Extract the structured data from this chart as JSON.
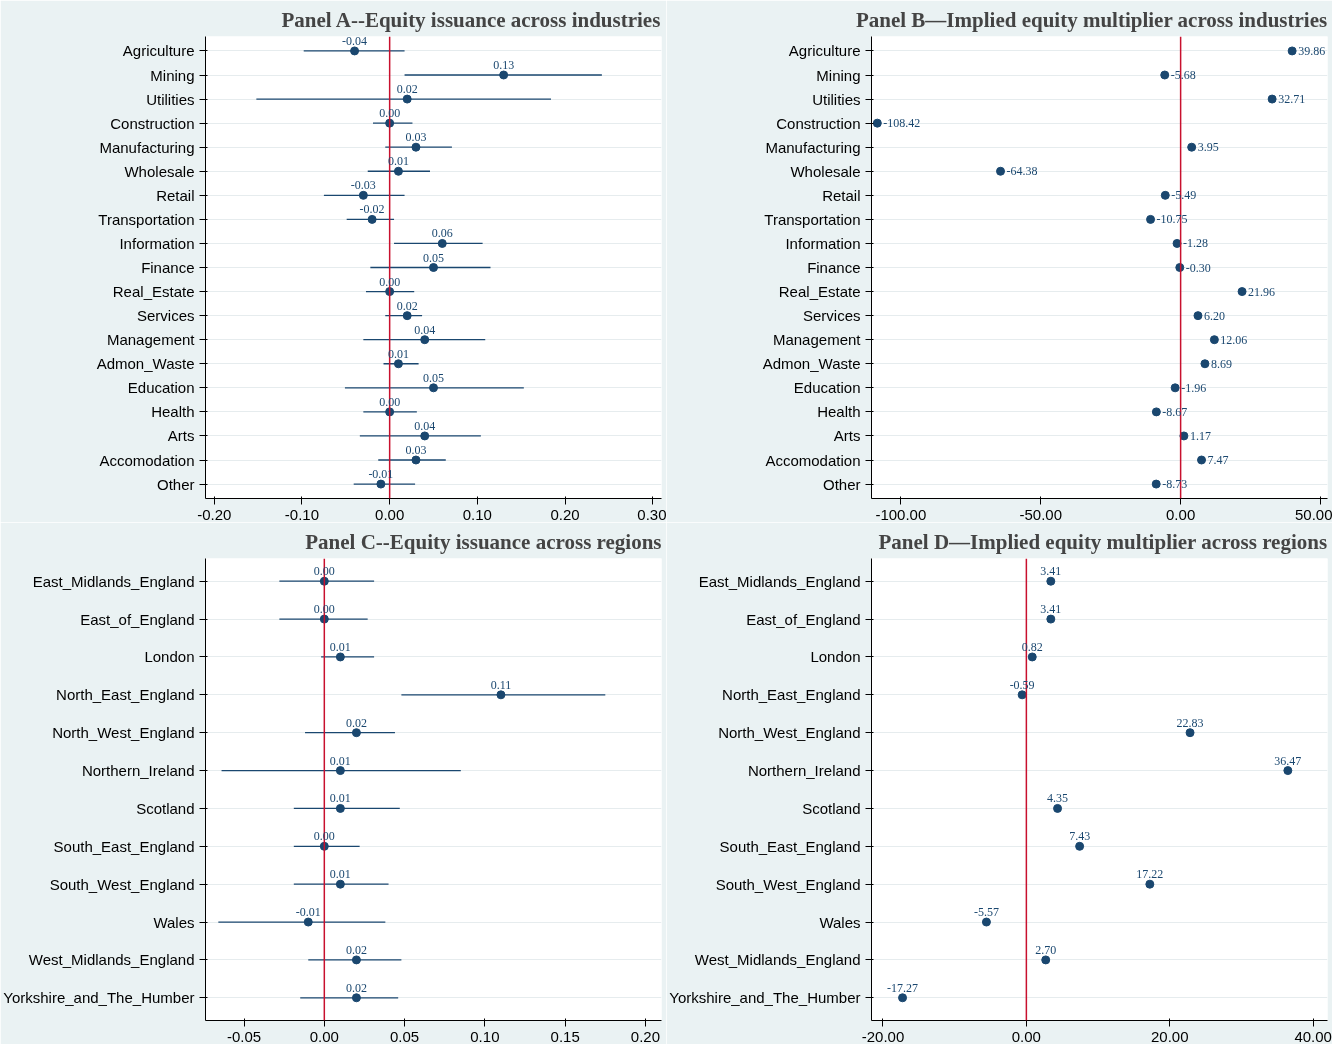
{
  "chart_data": [
    {
      "type": "scatter",
      "orientation": "horizontal",
      "title": "Panel A--Equity issuance across industries",
      "categories": [
        "Agriculture",
        "Mining",
        "Utilities",
        "Construction",
        "Manufacturing",
        "Wholesale",
        "Retail",
        "Transportation",
        "Information",
        "Finance",
        "Real_Estate",
        "Services",
        "Management",
        "Admon_Waste",
        "Education",
        "Health",
        "Arts",
        "Accomodation",
        "Other"
      ],
      "color": "#1a476f",
      "values": [
        -0.04,
        0.13,
        0.02,
        0.0,
        0.03,
        0.01,
        -0.03,
        -0.02,
        0.06,
        0.05,
        0.0,
        0.02,
        0.04,
        0.01,
        0.05,
        0.0,
        0.04,
        0.03,
        -0.01
      ],
      "value_labels": [
        "-0.04",
        "0.13",
        "0.02",
        "0.00",
        "0.03",
        "0.01",
        "-0.03",
        "-0.02",
        "0.06",
        "0.05",
        "0.00",
        "0.02",
        "0.04",
        "0.01",
        "0.05",
        "0.00",
        "0.04",
        "0.03",
        "-0.01"
      ],
      "errors": [
        [
          -0.098,
          0.017
        ],
        [
          0.017,
          0.242
        ],
        [
          -0.152,
          0.184
        ],
        [
          -0.019,
          0.026
        ],
        [
          -0.005,
          0.071
        ],
        [
          -0.025,
          0.046
        ],
        [
          -0.075,
          0.017
        ],
        [
          -0.049,
          0.005
        ],
        [
          0.005,
          0.106
        ],
        [
          -0.022,
          0.115
        ],
        [
          -0.027,
          0.028
        ],
        [
          -0.005,
          0.037
        ],
        [
          -0.03,
          0.109
        ],
        [
          -0.007,
          0.033
        ],
        [
          -0.051,
          0.153
        ],
        [
          -0.03,
          0.031
        ],
        [
          -0.034,
          0.104
        ],
        [
          -0.013,
          0.064
        ],
        [
          -0.041,
          0.029
        ]
      ],
      "marker": "circle",
      "grid": "y",
      "xlim": [
        -0.21,
        0.31
      ],
      "xticks": [
        {
          "value": -0.2,
          "label": "-0.20"
        },
        {
          "value": -0.1,
          "label": "-0.10"
        },
        {
          "value": 0,
          "label": "0.00"
        },
        {
          "value": 0.1,
          "label": "0.10"
        },
        {
          "value": 0.2,
          "label": "0.20"
        },
        {
          "value": 0.3,
          "label": "0.30"
        }
      ],
      "ref_lines": [
        {
          "axis": "x",
          "value": 0,
          "color": "#c8102e"
        }
      ]
    },
    {
      "type": "scatter",
      "orientation": "horizontal",
      "title": "Panel B—Implied equity multiplier across industries",
      "categories": [
        "Agriculture",
        "Mining",
        "Utilities",
        "Construction",
        "Manufacturing",
        "Wholesale",
        "Retail",
        "Transportation",
        "Information",
        "Finance",
        "Real_Estate",
        "Services",
        "Management",
        "Admon_Waste",
        "Education",
        "Health",
        "Arts",
        "Accomodation",
        "Other"
      ],
      "color": "#1a476f",
      "values": [
        39.86,
        -5.68,
        32.71,
        -108.42,
        3.95,
        -64.38,
        -5.49,
        -10.75,
        -1.28,
        -0.3,
        21.96,
        6.2,
        12.06,
        8.69,
        -1.96,
        -8.67,
        1.17,
        7.47,
        -8.73
      ],
      "value_labels": [
        "39.86",
        "-5.68",
        "32.71",
        "-108.42",
        "3.95",
        "-64.38",
        "-5.49",
        "-10.75",
        "-1.28",
        "-0.30",
        "21.96",
        "6.20",
        "12.06",
        "8.69",
        "-1.96",
        "-8.67",
        "1.17",
        "7.47",
        "-8.73"
      ],
      "marker": "circle",
      "grid": "y",
      "xlim": [
        -110.5,
        52.5
      ],
      "xticks": [
        {
          "value": -100,
          "label": "-100.00"
        },
        {
          "value": -50,
          "label": "-50.00"
        },
        {
          "value": 0,
          "label": "0.00"
        },
        {
          "value": 50,
          "label": "50.00"
        }
      ],
      "ref_lines": [
        {
          "axis": "x",
          "value": 0,
          "color": "#c8102e"
        }
      ]
    },
    {
      "type": "scatter",
      "orientation": "horizontal",
      "title": "Panel C--Equity issuance across regions",
      "categories": [
        "East_Midlands_England",
        "East_of_England",
        "London",
        "North_East_England",
        "North_West_England",
        "Northern_Ireland",
        "Scotland",
        "South_East_England",
        "South_West_England",
        "Wales",
        "West_Midlands_England",
        "Yorkshire_and_The_Humber"
      ],
      "color": "#1a476f",
      "values": [
        0.0,
        0.0,
        0.01,
        0.11,
        0.02,
        0.01,
        0.01,
        0.0,
        0.01,
        -0.01,
        0.02,
        0.02
      ],
      "value_labels": [
        "0.00",
        "0.00",
        "0.01",
        "0.11",
        "0.02",
        "0.01",
        "0.01",
        "0.00",
        "0.01",
        "-0.01",
        "0.02",
        "0.02"
      ],
      "errors": [
        [
          -0.028,
          0.031
        ],
        [
          -0.028,
          0.027
        ],
        [
          -0.002,
          0.031
        ],
        [
          0.048,
          0.175
        ],
        [
          -0.012,
          0.044
        ],
        [
          -0.064,
          0.085
        ],
        [
          -0.019,
          0.047
        ],
        [
          -0.019,
          0.022
        ],
        [
          -0.019,
          0.04
        ],
        [
          -0.066,
          0.038
        ],
        [
          -0.01,
          0.048
        ],
        [
          -0.015,
          0.046
        ]
      ],
      "marker": "circle",
      "grid": "y",
      "xlim": [
        -0.074,
        0.21
      ],
      "xticks": [
        {
          "value": -0.05,
          "label": "-0.05"
        },
        {
          "value": 0,
          "label": "0.00"
        },
        {
          "value": 0.05,
          "label": "0.05"
        },
        {
          "value": 0.1,
          "label": "0.10"
        },
        {
          "value": 0.15,
          "label": "0.15"
        },
        {
          "value": 0.2,
          "label": "0.20"
        }
      ],
      "ref_lines": [
        {
          "axis": "x",
          "value": 0,
          "color": "#c8102e"
        }
      ]
    },
    {
      "type": "scatter",
      "orientation": "horizontal",
      "title": "Panel D—Implied equity multiplier across regions",
      "categories": [
        "East_Midlands_England",
        "East_of_England",
        "London",
        "North_East_England",
        "North_West_England",
        "Northern_Ireland",
        "Scotland",
        "South_East_England",
        "South_West_England",
        "Wales",
        "West_Midlands_England",
        "Yorkshire_and_The_Humber"
      ],
      "color": "#1a476f",
      "values": [
        3.41,
        3.41,
        0.82,
        -0.59,
        22.83,
        36.47,
        4.35,
        7.43,
        17.22,
        -5.57,
        2.7,
        -17.27
      ],
      "value_labels": [
        "3.41",
        "3.41",
        "0.82",
        "-0.59",
        "22.83",
        "36.47",
        "4.35",
        "7.43",
        "17.22",
        "-5.57",
        "2.70",
        "-17.27"
      ],
      "marker": "circle",
      "grid": "y",
      "xlim": [
        -21.6,
        42
      ],
      "xticks": [
        {
          "value": -20,
          "label": "-20.00"
        },
        {
          "value": 0,
          "label": "0.00"
        },
        {
          "value": 20,
          "label": "20.00"
        },
        {
          "value": 40,
          "label": "40.00"
        }
      ],
      "ref_lines": [
        {
          "axis": "x",
          "value": 0,
          "color": "#c8102e"
        }
      ]
    }
  ]
}
